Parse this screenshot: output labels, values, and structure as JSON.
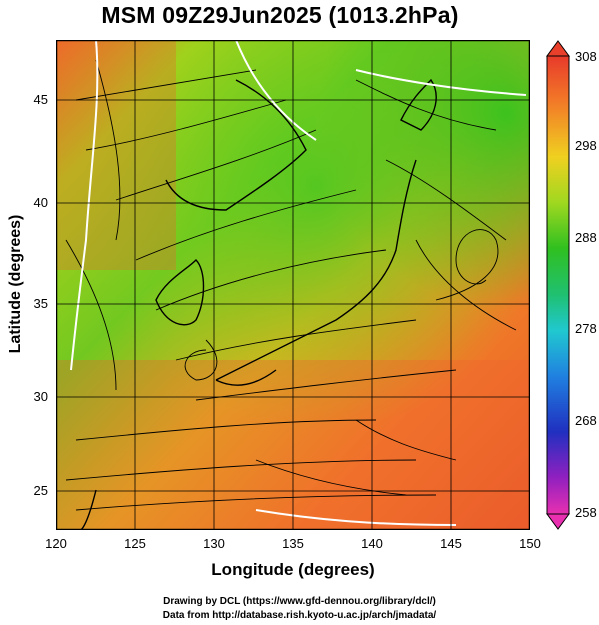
{
  "title": "MSM 09Z29Jun2025 (1013.2hPa)",
  "x_axis": {
    "label": "Longitude (degrees)",
    "ticks": [
      "120",
      "125",
      "130",
      "135",
      "140",
      "145",
      "150"
    ]
  },
  "y_axis": {
    "label": "Latitude  (degrees)",
    "ticks": [
      "45",
      "40",
      "35",
      "30",
      "25"
    ]
  },
  "colorbar": {
    "ticks": [
      "308",
      "298",
      "288",
      "278",
      "268",
      "258"
    ]
  },
  "credits": [
    "Drawing by DCL (https://www.gfd-dennou.org/library/dcl/)",
    "Data from http://database.rish.kyoto-u.ac.jp/arch/jmadata/"
  ],
  "colors": {
    "warm": "#f05a28",
    "mid": "#a0d020",
    "cool": "#30c020",
    "coast": "#000000",
    "contour": "#ffffff"
  },
  "layers": [
    "temperature-field",
    "streamlines",
    "coastlines",
    "latlon-grid",
    "freezing-contours"
  ]
}
